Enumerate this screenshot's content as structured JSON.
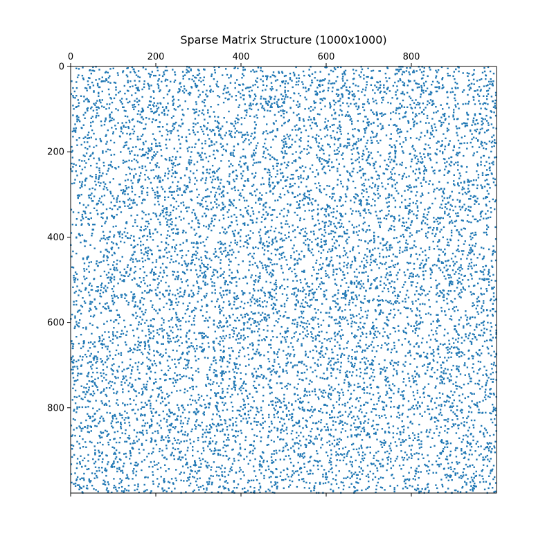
{
  "chart_data": {
    "type": "scatter",
    "title": "Sparse Matrix Structure (1000x1000)",
    "xlabel": "",
    "ylabel": "",
    "xlim": [
      0,
      1000
    ],
    "ylim": [
      1000,
      0
    ],
    "x_axis_position": "top",
    "y_axis_inverted": true,
    "grid": false,
    "legend": "none",
    "rows": 1000,
    "cols": 1000,
    "density": 0.01,
    "nonzero_count": 10000,
    "marker": "square",
    "color": "#1f77b4",
    "x_ticks": [
      0,
      200,
      400,
      600,
      800
    ],
    "x_tick_labels": [
      "0",
      "200",
      "400",
      "600",
      "800"
    ],
    "y_ticks": [
      0,
      200,
      400,
      600,
      800
    ],
    "y_tick_labels": [
      "0",
      "200",
      "400",
      "600",
      "800"
    ],
    "bottom_ticks": [
      0,
      200,
      400,
      600,
      800
    ]
  }
}
